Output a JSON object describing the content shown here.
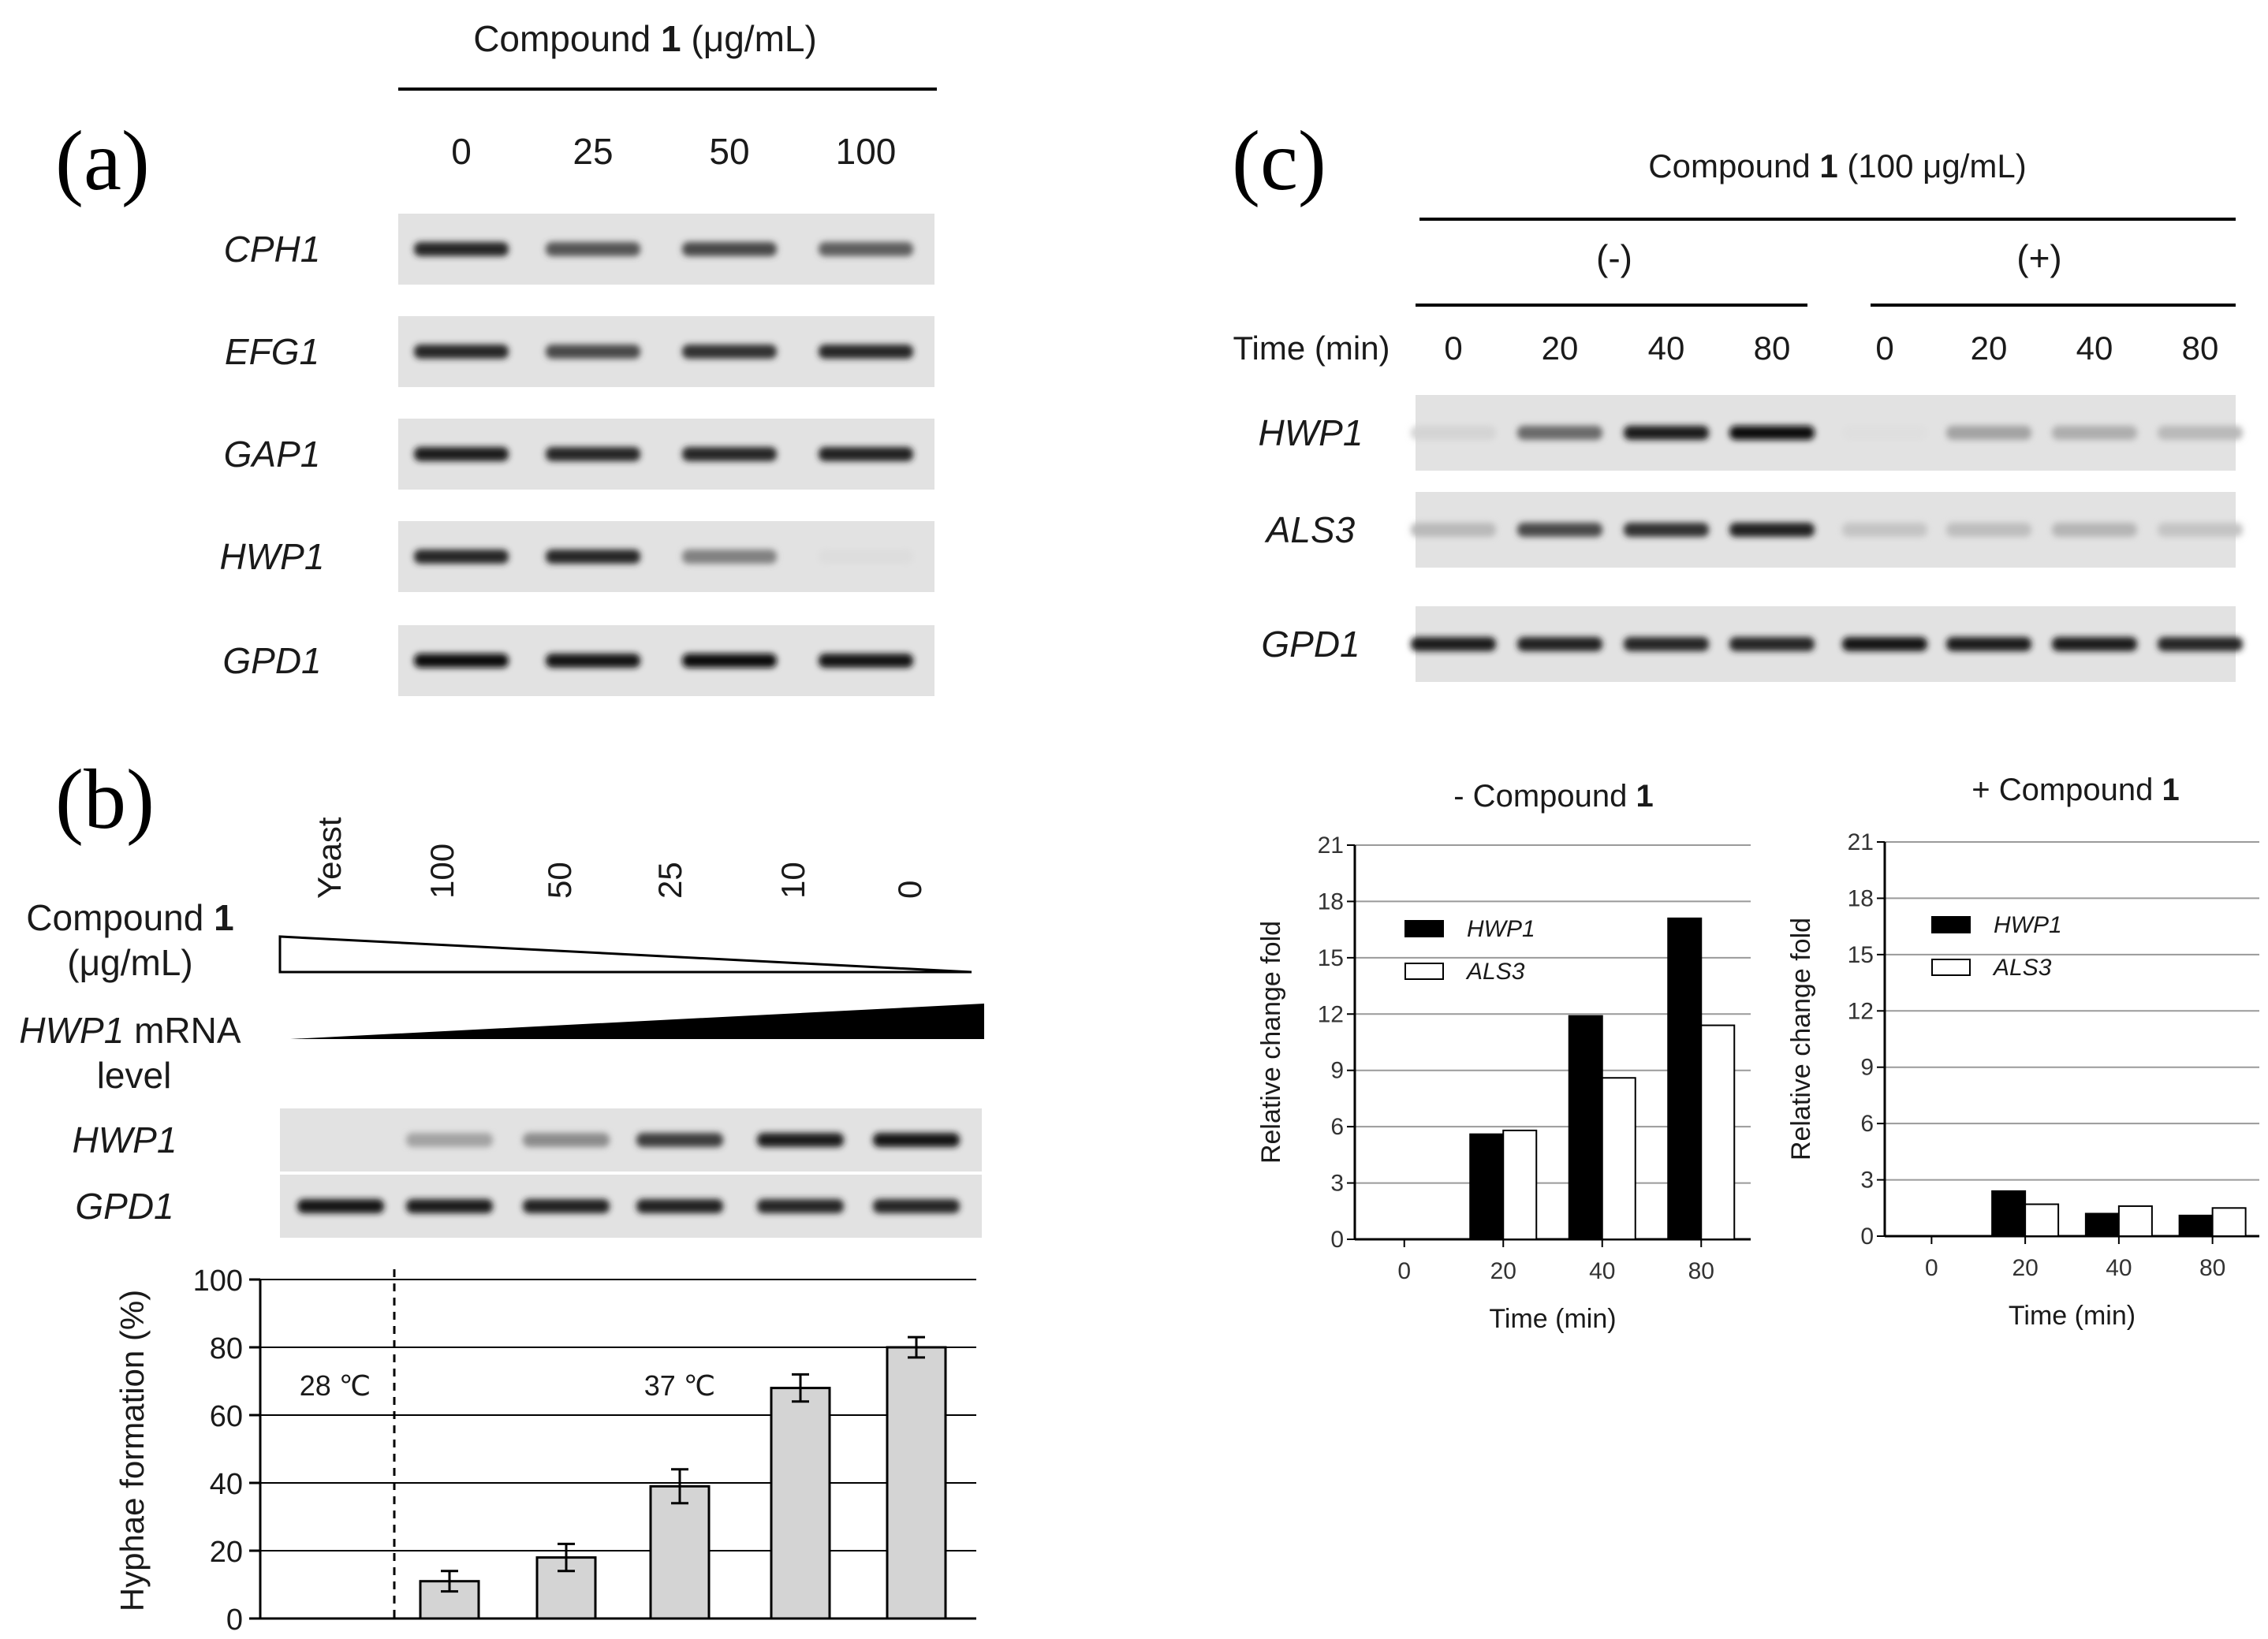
{
  "panel_a": {
    "letter": "(a)",
    "header_prefix": "Compound ",
    "header_bold": "1",
    "header_suffix": " (μg/mL)",
    "concentrations": [
      "0",
      "25",
      "50",
      "100"
    ],
    "genes": [
      "CPH1",
      "EFG1",
      "GAP1",
      "HWP1",
      "GPD1"
    ],
    "band_intensity": [
      [
        0.85,
        0.65,
        0.7,
        0.6
      ],
      [
        0.85,
        0.7,
        0.8,
        0.85
      ],
      [
        0.9,
        0.85,
        0.85,
        0.88
      ],
      [
        0.85,
        0.85,
        0.45,
        0.04
      ],
      [
        0.95,
        0.92,
        0.95,
        0.92
      ]
    ]
  },
  "panel_b": {
    "letter": "(b)",
    "lane_labels": [
      "Yeast",
      "100",
      "50",
      "25",
      "10",
      "0"
    ],
    "compound_label_prefix": "Compound ",
    "compound_label_bold": "1",
    "compound_label_unit": "(μg/mL)",
    "mrna_label_gene": "HWP1",
    "mrna_label_suffix": " mRNA",
    "mrna_label_line2": "level",
    "genes": [
      "HWP1",
      "GPD1"
    ],
    "band_intensity": [
      [
        0.0,
        0.3,
        0.4,
        0.75,
        0.9,
        0.92
      ],
      [
        0.92,
        0.9,
        0.88,
        0.88,
        0.85,
        0.85
      ]
    ],
    "temp_left": "28 ℃",
    "temp_right": "37 ℃"
  },
  "panel_c": {
    "letter": "(c)",
    "header_prefix": "Compound ",
    "header_bold": "1",
    "header_suffix": " (100 μg/mL)",
    "minus_label": "(-)",
    "plus_label": "(+)",
    "time_label": "Time (min)",
    "times": [
      "0",
      "20",
      "40",
      "80",
      "0",
      "20",
      "40",
      "80"
    ],
    "genes": [
      "HWP1",
      "ALS3",
      "GPD1"
    ],
    "band_intensity": [
      [
        0.08,
        0.55,
        0.9,
        0.95,
        0.03,
        0.3,
        0.25,
        0.2
      ],
      [
        0.2,
        0.7,
        0.8,
        0.88,
        0.15,
        0.18,
        0.22,
        0.15
      ],
      [
        0.9,
        0.88,
        0.85,
        0.85,
        0.92,
        0.9,
        0.9,
        0.85
      ]
    ]
  },
  "chart_data": [
    {
      "type": "bar",
      "title": "",
      "xlabel": "",
      "ylabel": "Hyphae formation (%)",
      "categories": [
        "Yeast",
        "100",
        "50",
        "25",
        "10",
        "0"
      ],
      "values": [
        null,
        11,
        18,
        39,
        68,
        80
      ],
      "errors": [
        null,
        3,
        4,
        5,
        4,
        3
      ],
      "ylim": [
        0,
        100
      ],
      "yticks": [
        "0",
        "20",
        "40",
        "60",
        "80",
        "100"
      ],
      "grid": true,
      "color": "#d4d4d4"
    },
    {
      "type": "bar",
      "title_prefix": "- Compound ",
      "title_bold": "1",
      "xlabel": "Time (min)",
      "ylabel": "Relative change fold",
      "categories": [
        "0",
        "20",
        "40",
        "80"
      ],
      "series": [
        {
          "name": "HWP1",
          "values": [
            0,
            5.6,
            11.9,
            17.1
          ],
          "color": "#000000"
        },
        {
          "name": "ALS3",
          "values": [
            0,
            5.8,
            8.6,
            11.4
          ],
          "color": "#ffffff"
        }
      ],
      "ylim": [
        0,
        21
      ],
      "yticks": [
        "0",
        "3",
        "6",
        "9",
        "12",
        "15",
        "18",
        "21"
      ],
      "grid": true,
      "legend": "top-left"
    },
    {
      "type": "bar",
      "title_prefix": "+ Compound ",
      "title_bold": "1",
      "xlabel": "Time (min)",
      "ylabel": "Relative change fold",
      "categories": [
        "0",
        "20",
        "40",
        "80"
      ],
      "series": [
        {
          "name": "HWP1",
          "values": [
            0,
            2.4,
            1.2,
            1.1
          ],
          "color": "#000000"
        },
        {
          "name": "ALS3",
          "values": [
            0,
            1.7,
            1.6,
            1.5
          ],
          "color": "#ffffff"
        }
      ],
      "ylim": [
        0,
        21
      ],
      "yticks": [
        "0",
        "3",
        "6",
        "9",
        "12",
        "15",
        "18",
        "21"
      ],
      "grid": true,
      "legend": "top-left"
    }
  ]
}
